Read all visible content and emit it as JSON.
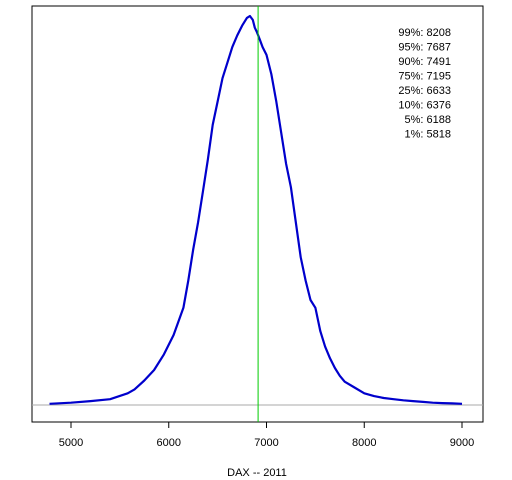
{
  "chart_data": {
    "type": "line",
    "title": "",
    "xlabel": "DAX -- 2011",
    "ylabel": "",
    "xlim": [
      4750,
      9200
    ],
    "ylim": [
      -0.035,
      1.035
    ],
    "xticks": [
      5000,
      6000,
      7000,
      8000,
      9000
    ],
    "xtick_labels": [
      "5000",
      "6000",
      "7000",
      "8000",
      "9000"
    ],
    "grid": false,
    "series": [
      {
        "color": "#0000cc",
        "x": [
          4780,
          5000,
          5200,
          5400,
          5580,
          5650,
          5750,
          5850,
          5950,
          6050,
          6150,
          6200,
          6250,
          6300,
          6350,
          6400,
          6450,
          6500,
          6550,
          6600,
          6650,
          6700,
          6750,
          6800,
          6830,
          6860,
          6880,
          6900,
          6930,
          6960,
          7000,
          7050,
          7100,
          7150,
          7200,
          7250,
          7300,
          7350,
          7400,
          7450,
          7500,
          7550,
          7600,
          7650,
          7700,
          7750,
          7800,
          7900,
          8000,
          8100,
          8200,
          8300,
          8400,
          8500,
          8600,
          8700,
          8800,
          8900,
          9000
        ],
        "y": [
          0.003,
          0.006,
          0.01,
          0.015,
          0.03,
          0.04,
          0.063,
          0.09,
          0.13,
          0.18,
          0.25,
          0.32,
          0.4,
          0.47,
          0.55,
          0.63,
          0.72,
          0.78,
          0.84,
          0.88,
          0.92,
          0.95,
          0.975,
          0.995,
          1.0,
          0.99,
          0.97,
          0.96,
          0.94,
          0.92,
          0.9,
          0.85,
          0.78,
          0.7,
          0.62,
          0.56,
          0.47,
          0.38,
          0.32,
          0.27,
          0.25,
          0.19,
          0.15,
          0.12,
          0.095,
          0.075,
          0.06,
          0.045,
          0.03,
          0.023,
          0.018,
          0.015,
          0.012,
          0.01,
          0.008,
          0.006,
          0.005,
          0.004,
          0.003
        ]
      }
    ],
    "reference_lines": {
      "vertical_x": 6914,
      "vertical_color": "#00cc00",
      "horizontal_y": 0,
      "horizontal_color": "#aaaaaa"
    },
    "annotations": [
      "99%: 8208",
      "95%: 7687",
      "90%: 7491",
      "75%: 7195",
      "25%: 6633",
      "10%: 6376",
      "5%: 6188",
      "1%: 5818"
    ],
    "annotation_placement": "top-right"
  }
}
